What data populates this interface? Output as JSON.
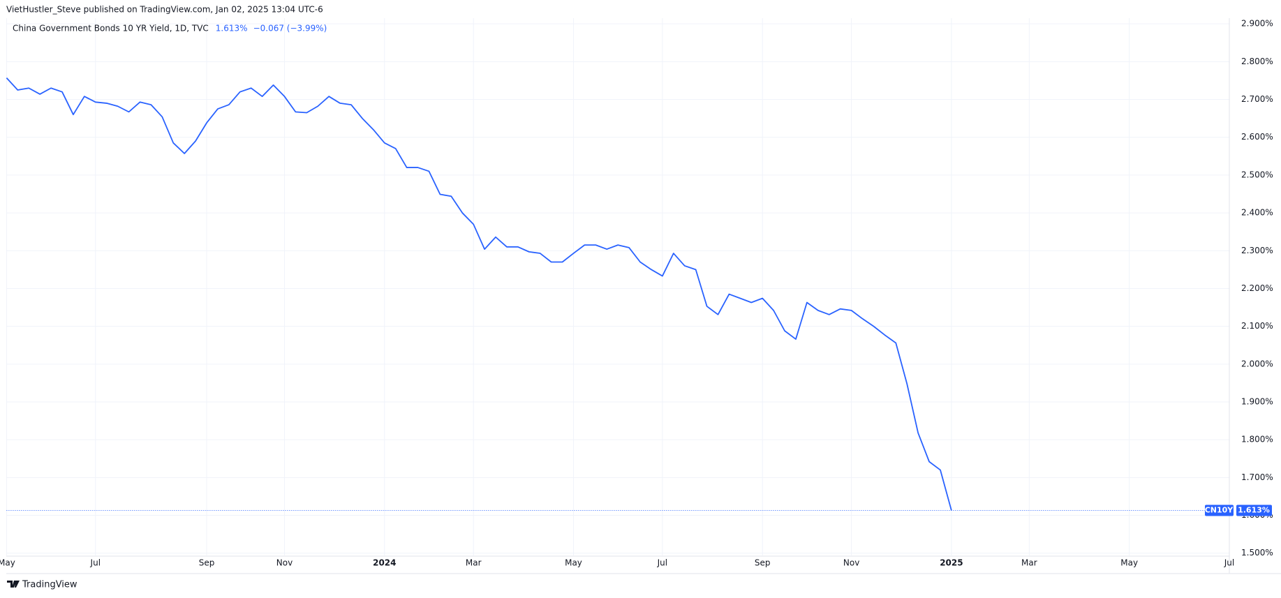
{
  "header": {
    "publisher": "VietHustler_Steve published on TradingView.com, Jan 02, 2025 13:04 UTC-6"
  },
  "footer": {
    "brand": "TradingView"
  },
  "chart_data": {
    "type": "line",
    "title": "China Government Bonds 10 YR Yield, 1D, TVC",
    "last_label": "1.613%",
    "change_label": "−0.067 (−3.99%)",
    "symbol": "CN10Y",
    "categories": [
      "May",
      null,
      null,
      null,
      null,
      null,
      null,
      null,
      "Jul",
      null,
      null,
      null,
      null,
      null,
      null,
      null,
      null,
      null,
      "Sep",
      null,
      null,
      null,
      null,
      null,
      null,
      "Nov",
      null,
      null,
      null,
      null,
      null,
      null,
      null,
      null,
      "2024",
      null,
      null,
      null,
      null,
      null,
      null,
      null,
      "Mar",
      null,
      null,
      null,
      null,
      null,
      null,
      null,
      null,
      "May",
      null,
      null,
      null,
      null,
      null,
      null,
      null,
      "Jul",
      null,
      null,
      null,
      null,
      null,
      null,
      null,
      null,
      "Sep",
      null,
      null,
      null,
      null,
      null,
      null,
      null,
      "Nov",
      null,
      null,
      null,
      null,
      null,
      null,
      null,
      null,
      "2025",
      null,
      null,
      null,
      null,
      null,
      null,
      "Mar",
      null,
      null,
      null,
      null,
      null,
      null,
      null,
      null,
      "May",
      null,
      null,
      null,
      null,
      null,
      null,
      null,
      null,
      "Jul"
    ],
    "series": [
      {
        "name": "CN10Y",
        "color": "#2962ff",
        "values": [
          2.757,
          2.725,
          2.73,
          2.714,
          2.73,
          2.72,
          2.66,
          2.708,
          2.693,
          2.69,
          2.682,
          2.667,
          2.693,
          2.686,
          2.654,
          2.585,
          2.557,
          2.59,
          2.638,
          2.675,
          2.686,
          2.72,
          2.73,
          2.708,
          2.738,
          2.708,
          2.667,
          2.665,
          2.682,
          2.708,
          2.69,
          2.686,
          2.65,
          2.62,
          2.585,
          2.57,
          2.52,
          2.52,
          2.51,
          2.449,
          2.444,
          2.4,
          2.37,
          2.304,
          2.336,
          2.31,
          2.31,
          2.297,
          2.293,
          2.27,
          2.27,
          2.293,
          2.315,
          2.315,
          2.304,
          2.315,
          2.308,
          2.27,
          2.25,
          2.233,
          2.293,
          2.26,
          2.25,
          2.153,
          2.131,
          2.185,
          2.174,
          2.163,
          2.174,
          2.142,
          2.088,
          2.066,
          2.163,
          2.142,
          2.131,
          2.146,
          2.142,
          2.12,
          2.1,
          2.077,
          2.056,
          1.948,
          1.818,
          1.742,
          1.72,
          1.613,
          null,
          null,
          null,
          null,
          null,
          null,
          null,
          null,
          null,
          null,
          null,
          null,
          null,
          null,
          null,
          null,
          null,
          null,
          null,
          null,
          null,
          null,
          null,
          null,
          null
        ]
      }
    ],
    "ylim": [
      1.494,
      2.915
    ],
    "yticks": [
      {
        "value": 2.9,
        "label": "2.900%"
      },
      {
        "value": 2.8,
        "label": "2.800%"
      },
      {
        "value": 2.7,
        "label": "2.700%"
      },
      {
        "value": 2.6,
        "label": "2.600%"
      },
      {
        "value": 2.5,
        "label": "2.500%"
      },
      {
        "value": 2.4,
        "label": "2.400%"
      },
      {
        "value": 2.3,
        "label": "2.300%"
      },
      {
        "value": 2.2,
        "label": "2.200%"
      },
      {
        "value": 2.1,
        "label": "2.100%"
      },
      {
        "value": 2.0,
        "label": "2.000%"
      },
      {
        "value": 1.9,
        "label": "1.900%"
      },
      {
        "value": 1.8,
        "label": "1.800%"
      },
      {
        "value": 1.7,
        "label": "1.700%"
      },
      {
        "value": 1.6,
        "label": "1.600%"
      },
      {
        "value": 1.5,
        "label": "1.500%"
      }
    ],
    "grid": true
  }
}
